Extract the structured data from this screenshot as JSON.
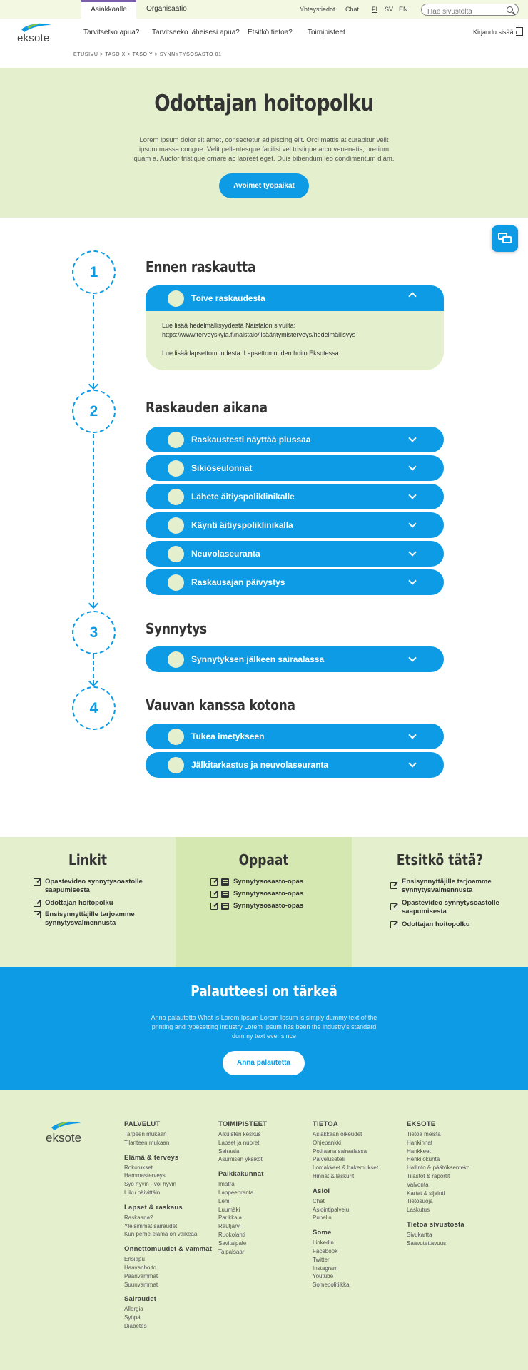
{
  "topbar": {
    "tabs": [
      "Asiakkaalle",
      "Organisaatio"
    ],
    "links": [
      "Yhteystiedot",
      "Chat"
    ],
    "languages": [
      "FI",
      "SV",
      "EN"
    ],
    "search_placeholder": "Hae sivustolta"
  },
  "header": {
    "logo_text": "eksote",
    "nav": [
      "Tarvitsetko apua?",
      "Tarvitseeko läheisesi apua?",
      "Etsitkö tietoa?",
      "Toimipisteet"
    ],
    "login": "Kirjaudu sisään"
  },
  "breadcrumb": "ETUSIVU > TASO X > TASO Y > SYNNYTYSOSASTO 01",
  "hero": {
    "title": "Odottajan hoitopolku",
    "text": "Lorem ipsum dolor sit amet, consectetur adipiscing elit. Orci mattis at curabitur velit ipsum massa congue. Velit pellentesque facilisi vel tristique arcu venenatis, pretium quam a. Auctor tristique ornare ac laoreet eget. Duis bibendum leo condimentum diam.",
    "button": "Avoimet työpaikat"
  },
  "steps": [
    {
      "number": "1",
      "title": "Ennen raskautta",
      "items": [
        "Toive raskaudesta"
      ],
      "open": {
        "line1": "Lue lisää hedelmällisyydestä Naistalon sivuilta:",
        "line2": "https://www.terveyskyla.fi/naistalo/lisääntymisterveys/hedelmällisyys",
        "line3": "Lue lisää lapsettomuudesta: Lapsettomuuden hoito Eksotessa"
      }
    },
    {
      "number": "2",
      "title": "Raskauden aikana",
      "items": [
        "Raskaustesti näyttää plussaa",
        "Sikiöseulonnat",
        "Lähete äitiyspoliklinikalle",
        "Käynti äitiyspoliklinikalla",
        "Neuvolaseuranta",
        "Raskausajan päivystys"
      ]
    },
    {
      "number": "3",
      "title": "Synnytys",
      "items": [
        "Synnytyksen jälkeen sairaalassa"
      ]
    },
    {
      "number": "4",
      "title": "Vauvan kanssa kotona",
      "items": [
        "Tukea imetykseen",
        "Jälkitarkastus ja neuvolaseuranta"
      ]
    }
  ],
  "links_block": {
    "title": "Linkit",
    "items": [
      "Opastevideo synnytysoastolle saapumisesta",
      "Odottajan hoitopolku",
      "Ensisynnyttäjille tarjoamme synnytysvalmennusta"
    ]
  },
  "guides_block": {
    "title": "Oppaat",
    "items": [
      "Synnytysosasto-opas",
      "Synnytysosasto-opas",
      "Synnytysosasto-opas"
    ]
  },
  "search_block": {
    "title": "Etsitkö tätä?",
    "items": [
      "Ensisynnyttäjille tarjoamme synnytysvalmennusta",
      "Opastevideo synnytysoastolle saapumisesta",
      "Odottajan hoitopolku"
    ]
  },
  "feedback": {
    "title": "Palautteesi on tärkeä",
    "text": "Anna palautetta What is Lorem Ipsum Lorem Ipsum is simply dummy text of the printing and typesetting industry Lorem Ipsum has been the industry's standard dummy text ever since",
    "button": "Anna palautetta"
  },
  "footer": {
    "logo_text": "eksote",
    "columns": [
      [
        {
          "heading": "PALVELUT",
          "items": [
            "Tarpeen mukaan",
            "Tilanteen mukaan"
          ]
        },
        {
          "heading": "Elämä & terveys",
          "items": [
            "Rokotukset",
            "Hammasterveys",
            "Syö hyvin - voi hyvin",
            "Liiku päivittäin"
          ]
        },
        {
          "heading": "Lapset & raskaus",
          "items": [
            "Raskaana?",
            "Yleisimmät sairaudet",
            "Kun perhe-elämä on vaikeaa"
          ]
        },
        {
          "heading": "Onnettomuudet & vammat",
          "items": [
            "Ensiapu",
            "Haavanhoito",
            "Päänvammat",
            "Suunvammat"
          ]
        },
        {
          "heading": "Sairaudet",
          "items": [
            "Allergia",
            "Syöpä",
            "Diabetes"
          ]
        }
      ],
      [
        {
          "heading": "TOIMIPISTEET",
          "items": [
            "Aikuisten keskus",
            "Lapset ja nuoret",
            "Sairaala",
            "Asumisen yksiköt"
          ]
        },
        {
          "heading": "Paikkakunnat",
          "items": [
            "Imatra",
            "Lappeenranta",
            "Lemi",
            "Luumäki",
            "Parikkala",
            "Rautjärvi",
            "Ruokolahti",
            "Savitaipale",
            "Taipalsaari"
          ]
        }
      ],
      [
        {
          "heading": "TIETOA",
          "items": [
            "Asiakkaan oikeudet",
            "Ohjepankki",
            "Potilaana sairaalassa",
            "Palveluseteli",
            "Lomakkeet & hakemukset",
            "Hinnat & laskurit"
          ]
        },
        {
          "heading": "Asioi",
          "items": [
            "Chat",
            "Asiointipalvelu",
            "Puhelin"
          ]
        },
        {
          "heading": "Some",
          "items": [
            "Linkedin",
            "Facebook",
            "Twitter",
            "Instagram",
            "Youtube",
            "Somepolitiikka"
          ]
        }
      ],
      [
        {
          "heading": "EKSOTE",
          "items": [
            "Tietoa meistä",
            "Hankinnat",
            "Hankkeet",
            "Henkilökunta",
            "Hallinto & päätöksenteko",
            "Tilastot & raportit",
            "Valvonta",
            "Kartat & sijainti",
            "Tietosuoja",
            "Laskutus"
          ]
        },
        {
          "heading": "Tietoa sivustosta",
          "items": [
            "Sivukartta",
            "Saavutettavuus"
          ]
        }
      ]
    ]
  },
  "colors": {
    "primary_blue": "#0c9be4",
    "light_green": "#e4efcd",
    "mid_green": "#d6e8b2",
    "tab_accent": "#7b5fa8"
  }
}
